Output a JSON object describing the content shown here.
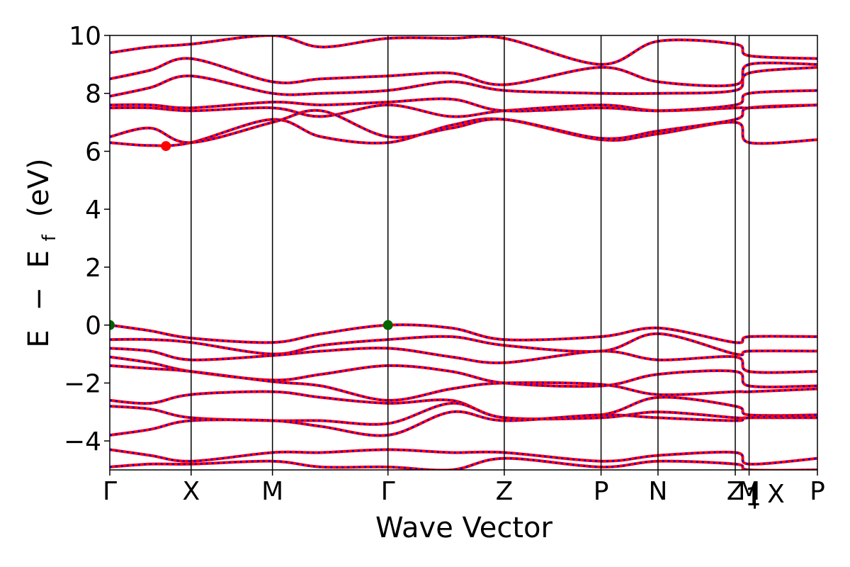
{
  "chart_data": {
    "type": "line",
    "title": "",
    "xlabel": "Wave Vector",
    "ylabel_parts": [
      "E",
      "−",
      "E",
      "f",
      "(eV)"
    ],
    "ylim": [
      -5,
      10
    ],
    "y_ticks": [
      -4,
      -2,
      0,
      2,
      4,
      6,
      8,
      10
    ],
    "y_tick_labels": [
      "−4",
      "−2",
      "0",
      "2",
      "4",
      "6",
      "8",
      "10"
    ],
    "xlim": [
      0,
      8.7
    ],
    "x_ticks": [
      0,
      1.0,
      2.0,
      3.42,
      4.85,
      6.04,
      6.74,
      7.69,
      7.86,
      8.7
    ],
    "x_tick_labels": [
      "Γ",
      "X",
      "M",
      "Γ",
      "Z",
      "P",
      "N",
      "Z",
      "M",
      "P"
    ],
    "extra_labels": [
      {
        "text": "1",
        "attach_to": 7
      },
      {
        "text": "| X",
        "attach_to": 8
      }
    ],
    "vertical_lines": [
      1.0,
      2.0,
      3.42,
      4.85,
      6.04,
      6.74,
      7.69,
      7.86
    ],
    "line_colors": {
      "spin_up": "#ff0000",
      "spin_down": "#0000ff"
    },
    "extrema": [
      {
        "kind": "CBM",
        "x": 0.69,
        "y": 6.18,
        "color": "#ff0000"
      },
      {
        "kind": "VBM",
        "x": 0,
        "y": 0,
        "color": "#006400"
      },
      {
        "kind": "VBM",
        "x": 3.42,
        "y": 0,
        "color": "#006400"
      }
    ],
    "bands": [
      {
        "name": "b1",
        "x": [
          0,
          0.5,
          1.0,
          2.0,
          2.6,
          3.42,
          4.2,
          4.85,
          6.04,
          6.74,
          7.69,
          7.86,
          8.7
        ],
        "y": [
          6.3,
          6.2,
          6.3,
          7.1,
          6.5,
          6.3,
          6.9,
          7.1,
          6.4,
          6.6,
          7.0,
          6.3,
          6.4
        ]
      },
      {
        "name": "b2",
        "x": [
          0,
          0.5,
          1.0,
          2.0,
          2.6,
          3.42,
          4.2,
          4.85,
          6.04,
          6.74,
          7.69,
          7.86,
          8.7
        ],
        "y": [
          6.5,
          6.8,
          6.3,
          7.0,
          7.4,
          6.5,
          6.8,
          7.1,
          6.45,
          6.7,
          7.1,
          7.5,
          7.6
        ]
      },
      {
        "name": "b3",
        "x": [
          0,
          0.5,
          1.0,
          2.0,
          2.6,
          3.42,
          4.2,
          4.85,
          6.04,
          6.74,
          7.69,
          7.86,
          8.7
        ],
        "y": [
          7.5,
          7.5,
          7.4,
          7.5,
          7.2,
          7.6,
          7.2,
          7.4,
          7.6,
          7.4,
          7.5,
          7.5,
          7.6
        ]
      },
      {
        "name": "b4",
        "x": [
          0,
          0.5,
          1.0,
          2.0,
          2.6,
          3.42,
          4.2,
          4.85,
          6.04,
          6.74,
          7.69,
          7.86,
          8.7
        ],
        "y": [
          7.6,
          7.6,
          7.5,
          7.7,
          7.6,
          7.7,
          7.8,
          7.4,
          7.5,
          7.4,
          7.6,
          8.0,
          8.1
        ]
      },
      {
        "name": "b5",
        "x": [
          0,
          0.5,
          1.0,
          2.0,
          2.6,
          3.42,
          4.2,
          4.85,
          6.04,
          6.74,
          7.69,
          7.86,
          8.7
        ],
        "y": [
          7.9,
          8.2,
          8.6,
          8.0,
          8.0,
          8.1,
          8.4,
          8.1,
          8.0,
          8.0,
          8.1,
          8.7,
          8.9
        ]
      },
      {
        "name": "b6",
        "x": [
          0,
          0.5,
          1.0,
          2.0,
          2.6,
          3.42,
          4.2,
          4.85,
          6.04,
          6.74,
          7.69,
          7.86,
          8.7
        ],
        "y": [
          8.5,
          8.8,
          9.2,
          8.4,
          8.5,
          8.6,
          8.7,
          8.3,
          8.9,
          8.4,
          8.3,
          9.0,
          9.0
        ]
      },
      {
        "name": "b7",
        "x": [
          0,
          0.5,
          1.0,
          2.0,
          2.6,
          3.42,
          4.2,
          4.85,
          6.04,
          6.74,
          7.69,
          7.86,
          8.7
        ],
        "y": [
          9.4,
          9.6,
          9.7,
          10.0,
          9.6,
          9.9,
          9.9,
          9.9,
          9.0,
          9.8,
          9.7,
          9.3,
          9.2
        ]
      },
      {
        "name": "b8",
        "x": [
          0,
          0.5,
          1.0,
          2.0,
          2.6,
          3.42,
          4.2,
          4.85,
          6.04,
          6.74,
          7.69,
          7.86,
          8.7
        ],
        "y": [
          0.0,
          -0.2,
          -0.45,
          -0.6,
          -0.3,
          0.0,
          -0.1,
          -0.5,
          -0.4,
          -0.1,
          -0.6,
          -0.4,
          -0.4
        ]
      },
      {
        "name": "b9",
        "x": [
          0,
          0.5,
          1.0,
          2.0,
          2.6,
          3.42,
          4.2,
          4.85,
          6.04,
          6.74,
          7.69,
          7.86,
          8.7
        ],
        "y": [
          -0.5,
          -0.5,
          -0.6,
          -1.0,
          -0.7,
          -0.5,
          -0.4,
          -0.7,
          -0.9,
          -0.3,
          -1.0,
          -0.9,
          -0.9
        ]
      },
      {
        "name": "b10",
        "x": [
          0,
          0.5,
          1.0,
          2.0,
          2.6,
          3.42,
          4.2,
          4.85,
          6.04,
          6.74,
          7.69,
          7.86,
          8.7
        ],
        "y": [
          -0.8,
          -0.9,
          -1.2,
          -1.05,
          -0.9,
          -0.8,
          -1.1,
          -1.3,
          -0.9,
          -1.2,
          -1.1,
          -1.6,
          -1.6
        ]
      },
      {
        "name": "b11",
        "x": [
          0,
          0.5,
          1.0,
          2.0,
          2.6,
          3.42,
          4.2,
          4.85,
          6.04,
          6.74,
          7.69,
          7.86,
          8.7
        ],
        "y": [
          -1.1,
          -1.3,
          -1.6,
          -1.9,
          -1.7,
          -1.4,
          -1.6,
          -2.0,
          -2.1,
          -1.7,
          -1.6,
          -2.1,
          -2.1
        ]
      },
      {
        "name": "b12",
        "x": [
          0,
          0.5,
          1.0,
          2.0,
          2.6,
          3.42,
          4.2,
          4.85,
          6.04,
          6.74,
          7.69,
          7.86,
          8.7
        ],
        "y": [
          -1.4,
          -1.5,
          -1.6,
          -1.95,
          -2.1,
          -2.6,
          -2.2,
          -2.0,
          -2.05,
          -2.4,
          -2.3,
          -2.3,
          -2.2
        ]
      },
      {
        "name": "b13",
        "x": [
          0,
          0.5,
          1.0,
          2.0,
          2.6,
          3.42,
          4.2,
          4.85,
          6.04,
          6.74,
          7.69,
          7.86,
          8.7
        ],
        "y": [
          -2.6,
          -2.7,
          -2.4,
          -2.3,
          -2.5,
          -2.7,
          -2.6,
          -3.2,
          -3.1,
          -2.5,
          -2.8,
          -3.1,
          -3.1
        ]
      },
      {
        "name": "b14",
        "x": [
          0,
          0.5,
          1.0,
          2.0,
          2.6,
          3.42,
          4.2,
          4.85,
          6.04,
          6.74,
          7.69,
          7.86,
          8.7
        ],
        "y": [
          -2.8,
          -2.9,
          -3.2,
          -3.3,
          -3.3,
          -3.4,
          -2.7,
          -3.2,
          -3.2,
          -3.0,
          -3.2,
          -3.2,
          -3.2
        ]
      },
      {
        "name": "b15",
        "x": [
          0,
          0.5,
          1.0,
          2.0,
          2.6,
          3.42,
          4.2,
          4.85,
          6.04,
          6.74,
          7.69,
          7.86,
          8.7
        ],
        "y": [
          -3.8,
          -3.6,
          -3.3,
          -3.3,
          -3.5,
          -3.8,
          -3.0,
          -3.3,
          -3.1,
          -3.2,
          -3.3,
          -3.2,
          -3.1
        ]
      },
      {
        "name": "b16",
        "x": [
          0,
          0.5,
          1.0,
          2.0,
          2.6,
          3.42,
          4.2,
          4.85,
          6.04,
          6.74,
          7.69,
          7.86,
          8.7
        ],
        "y": [
          -4.3,
          -4.5,
          -4.7,
          -4.4,
          -4.4,
          -4.3,
          -4.4,
          -4.4,
          -4.7,
          -4.5,
          -4.4,
          -4.8,
          -4.6
        ]
      },
      {
        "name": "b17",
        "x": [
          0,
          0.5,
          1.0,
          2.0,
          2.6,
          3.42,
          4.2,
          4.85,
          6.04,
          6.74,
          7.69,
          7.86,
          8.7
        ],
        "y": [
          -4.9,
          -4.8,
          -4.8,
          -4.7,
          -4.9,
          -4.9,
          -5.0,
          -4.6,
          -4.9,
          -4.7,
          -4.8,
          -5.0,
          -5.0
        ]
      }
    ]
  }
}
